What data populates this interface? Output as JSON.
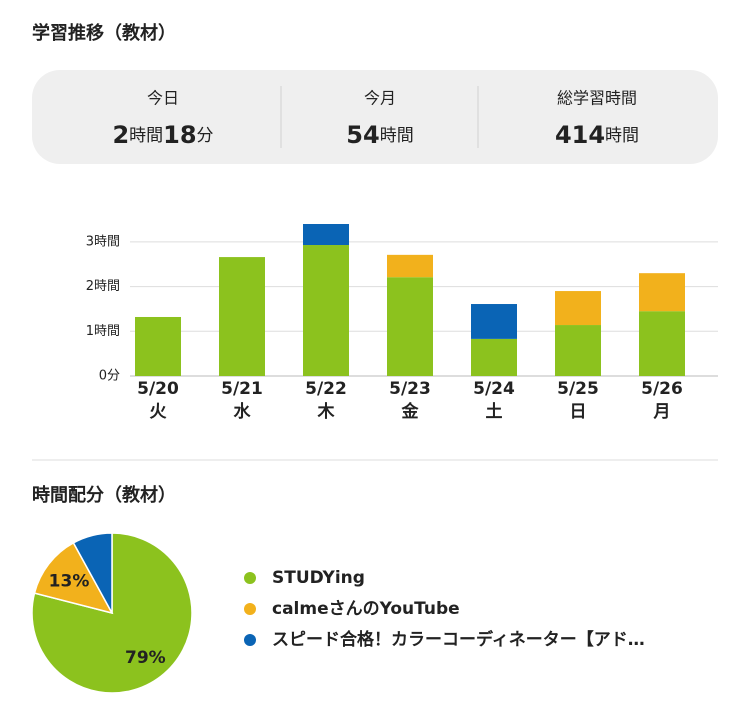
{
  "title": "学習推移（教材）",
  "summary": [
    {
      "label": "今日",
      "parts": [
        "2",
        "時間",
        "18",
        "分"
      ]
    },
    {
      "label": "今月",
      "parts": [
        "54",
        "時間"
      ]
    },
    {
      "label": "総学習時間",
      "parts": [
        "414",
        "時間"
      ]
    }
  ],
  "section2_title": "時間配分（教材）",
  "chart_data": [
    {
      "type": "stacked_bar",
      "categories": [
        "5/20",
        "5/21",
        "5/22",
        "5/23",
        "5/24",
        "5/25",
        "5/26"
      ],
      "weekdays": [
        "火",
        "水",
        "木",
        "金",
        "土",
        "日",
        "月"
      ],
      "series": [
        {
          "name": "STUDYing",
          "color": "#8cc21e",
          "values": [
            1.32,
            2.66,
            2.93,
            2.21,
            0.83,
            1.14,
            1.45
          ]
        },
        {
          "name": "calmeさんのYouTube",
          "color": "#f2b11c",
          "values": [
            null,
            null,
            null,
            0.5,
            null,
            0.76,
            0.85
          ]
        },
        {
          "name": "スピード合格！カラーコーディネーター【アド…",
          "color": "#0a64b5",
          "values": [
            null,
            null,
            0.47,
            null,
            0.78,
            null,
            null
          ]
        }
      ],
      "ylim": [
        0,
        3.4
      ],
      "yticks": [
        {
          "value": 0,
          "label": "0分"
        },
        {
          "value": 1,
          "label": "1時間"
        },
        {
          "value": 2,
          "label": "2時間"
        },
        {
          "value": 3,
          "label": "3時間"
        }
      ],
      "grid": true
    },
    {
      "type": "pie",
      "categories": [
        "STUDYing",
        "calmeさんのYouTube",
        "スピード合格！カラーコーディネーター【アド…"
      ],
      "colors": [
        "#8cc21e",
        "#f2b11c",
        "#0a64b5"
      ],
      "values": [
        79,
        13,
        8
      ],
      "value_labels": [
        "79%",
        "13%",
        null
      ]
    }
  ]
}
